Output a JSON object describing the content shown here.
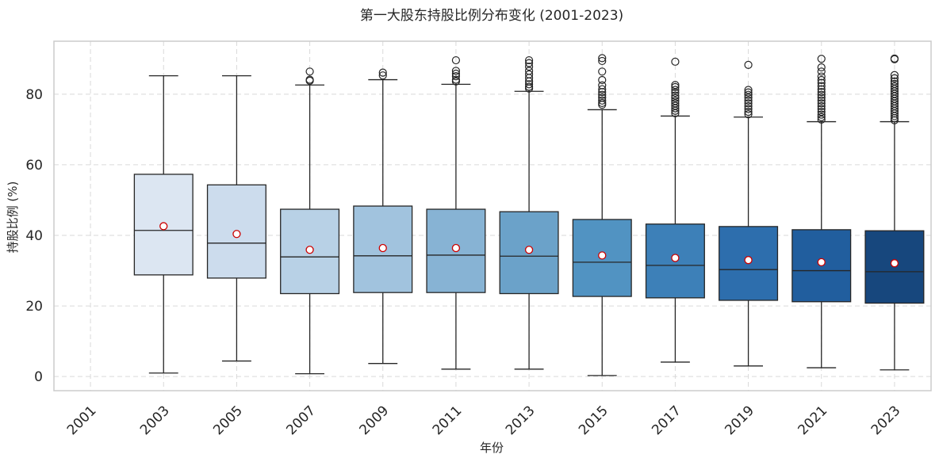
{
  "chart_data": {
    "type": "box",
    "title": "第一大股东持股比例分布变化 (2001-2023)",
    "xlabel": "年份",
    "ylabel": "持股比例 (%)",
    "ylim": [
      -4,
      95
    ],
    "yticks": [
      0,
      20,
      40,
      60,
      80
    ],
    "grid": true,
    "categories": [
      "2001",
      "2003",
      "2005",
      "2007",
      "2009",
      "2011",
      "2013",
      "2015",
      "2017",
      "2019",
      "2021",
      "2023"
    ],
    "boxes": [
      {
        "year": "2001",
        "empty": true
      },
      {
        "year": "2003",
        "whisker_low": 1.0,
        "q1": 28.8,
        "median": 41.4,
        "q3": 57.3,
        "whisker_high": 85.2,
        "mean": 42.6,
        "outliers": [],
        "fill": "#dce6f2"
      },
      {
        "year": "2005",
        "whisker_low": 4.4,
        "q1": 27.9,
        "median": 37.8,
        "q3": 54.3,
        "whisker_high": 85.2,
        "mean": 40.4,
        "outliers": [],
        "fill": "#ccdced"
      },
      {
        "year": "2007",
        "whisker_low": 0.8,
        "q1": 23.5,
        "median": 33.9,
        "q3": 47.4,
        "whisker_high": 82.6,
        "mean": 35.9,
        "outliers": [
          83.8,
          84.1,
          86.4
        ],
        "fill": "#b8d1e6"
      },
      {
        "year": "2009",
        "whisker_low": 3.7,
        "q1": 23.8,
        "median": 34.2,
        "q3": 48.3,
        "whisker_high": 84.1,
        "mean": 36.4,
        "outliers": [
          85.3,
          86.1
        ],
        "fill": "#a1c3de"
      },
      {
        "year": "2011",
        "whisker_low": 2.1,
        "q1": 23.8,
        "median": 34.4,
        "q3": 47.4,
        "whisker_high": 82.8,
        "mean": 36.4,
        "outliers": [
          83.6,
          84.1,
          85.1,
          85.8,
          86.6,
          89.6
        ],
        "fill": "#87b3d4"
      },
      {
        "year": "2013",
        "whisker_low": 2.1,
        "q1": 23.5,
        "median": 34.1,
        "q3": 46.7,
        "whisker_high": 80.8,
        "mean": 35.9,
        "outliers": [
          81.6,
          82.1,
          82.8,
          83.6,
          84.6,
          85.6,
          86.6,
          87.8,
          88.8,
          89.6
        ],
        "fill": "#6ba2c9"
      },
      {
        "year": "2015",
        "whisker_low": 0.3,
        "q1": 22.7,
        "median": 32.4,
        "q3": 44.5,
        "whisker_high": 75.6,
        "mean": 34.3,
        "outliers": [
          77.0,
          77.5,
          78.2,
          79.0,
          79.8,
          80.6,
          81.4,
          82.5,
          84.0,
          86.4,
          89.4,
          90.2
        ],
        "fill": "#5193c2"
      },
      {
        "year": "2017",
        "whisker_low": 4.1,
        "q1": 22.3,
        "median": 31.5,
        "q3": 43.2,
        "whisker_high": 73.8,
        "mean": 33.6,
        "outliers": [
          74.6,
          75.3,
          76.0,
          76.7,
          77.4,
          78.1,
          78.9,
          79.6,
          80.4,
          81.2,
          82.0,
          82.6,
          89.2
        ],
        "fill": "#3d80b8"
      },
      {
        "year": "2019",
        "whisker_low": 3.0,
        "q1": 21.6,
        "median": 30.3,
        "q3": 42.5,
        "whisker_high": 73.5,
        "mean": 33.0,
        "outliers": [
          74.3,
          75.0,
          75.8,
          76.6,
          77.4,
          78.2,
          79.0,
          79.8,
          80.5,
          81.2,
          88.3
        ],
        "fill": "#2d6ead"
      },
      {
        "year": "2021",
        "whisker_low": 2.5,
        "q1": 21.2,
        "median": 30.0,
        "q3": 41.6,
        "whisker_high": 72.2,
        "mean": 32.4,
        "outliers": [
          72.8,
          73.5,
          74.2,
          75.0,
          75.8,
          76.6,
          77.4,
          78.2,
          79.0,
          79.8,
          80.6,
          81.4,
          82.3,
          83.2,
          84.0,
          85.0,
          86.4,
          87.6,
          90.0
        ],
        "fill": "#215e9e"
      },
      {
        "year": "2023",
        "whisker_low": 1.9,
        "q1": 20.8,
        "median": 29.7,
        "q3": 41.3,
        "whisker_high": 72.2,
        "mean": 32.1,
        "outliers": [
          72.6,
          73.2,
          73.8,
          74.5,
          75.2,
          75.9,
          76.6,
          77.3,
          78.0,
          78.7,
          79.4,
          80.1,
          80.8,
          81.5,
          82.2,
          82.9,
          83.6,
          84.5,
          85.4,
          89.9,
          90.1
        ],
        "fill": "#17477d"
      }
    ],
    "colors": {
      "box_edge": "#262626",
      "mean_marker_fill": "#ffffff",
      "mean_marker_edge": "#cc0000",
      "outlier_edge": "#262626",
      "grid": "#d9d9d9",
      "frame": "#cccccc"
    }
  }
}
